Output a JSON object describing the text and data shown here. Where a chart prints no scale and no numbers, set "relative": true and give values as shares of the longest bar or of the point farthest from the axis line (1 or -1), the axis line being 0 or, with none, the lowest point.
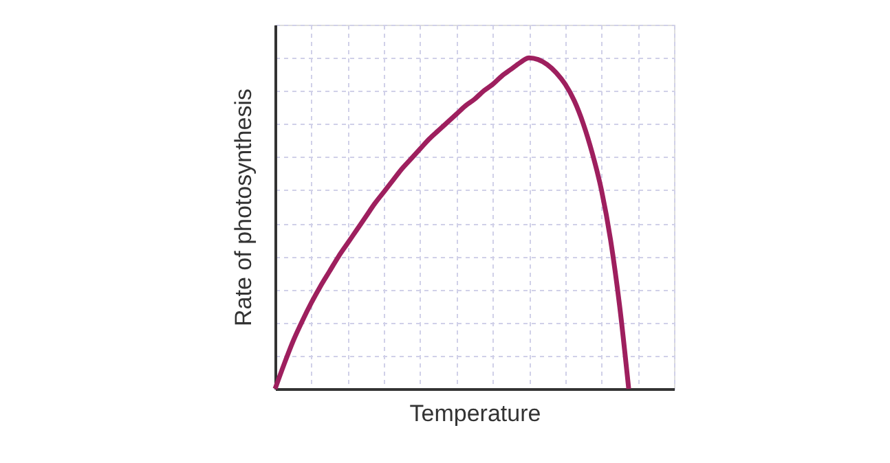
{
  "chart_data": {
    "type": "line",
    "relative": true,
    "grid": true,
    "xlabel": "Temperature",
    "ylabel": "Rate of photosynthesis",
    "categories": [
      null,
      null,
      null,
      null,
      null,
      null,
      null,
      null,
      null,
      null,
      null,
      null,
      null,
      null,
      null,
      null,
      null,
      null,
      null,
      null,
      null,
      null,
      null,
      null,
      null,
      null,
      null,
      null,
      null,
      null,
      null,
      null,
      null,
      null,
      null,
      null,
      null,
      null,
      null,
      null,
      null,
      null,
      null,
      null,
      null
    ],
    "series": [
      {
        "color": "#9e1f5e",
        "values": [
          0,
          0.075,
          0.145,
          0.205,
          0.26,
          0.31,
          0.355,
          0.4,
          0.44,
          0.48,
          0.52,
          0.56,
          0.595,
          0.63,
          0.665,
          0.695,
          0.725,
          0.755,
          0.78,
          0.805,
          0.83,
          0.855,
          0.875,
          0.9,
          0.92,
          0.945,
          0.965,
          0.985,
          1.0,
          0.995,
          0.98,
          0.955,
          0.92,
          0.87,
          0.8,
          0.71,
          0.6,
          0.45,
          0.25,
          0,
          null,
          null,
          null,
          null,
          null
        ]
      }
    ]
  }
}
